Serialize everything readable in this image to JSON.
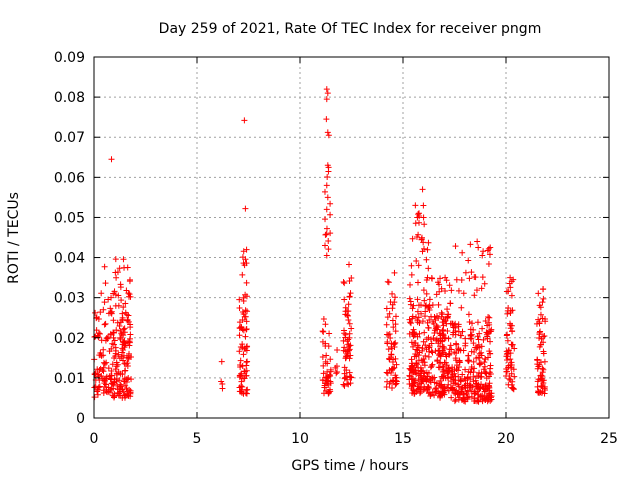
{
  "chart_data": {
    "type": "scatter",
    "title": "Day 259 of 2021, Rate Of TEC Index for receiver pngm",
    "xlabel": "GPS time / hours",
    "ylabel": "ROTI / TECUs",
    "xlim": [
      0,
      25
    ],
    "ylim": [
      0,
      0.09
    ],
    "xticks": [
      "0",
      "5",
      "10",
      "15",
      "20",
      "25"
    ],
    "yticks": [
      "0",
      "0.01",
      "0.02",
      "0.03",
      "0.04",
      "0.05",
      "0.06",
      "0.07",
      "0.08",
      "0.09"
    ],
    "grid": true,
    "marker": "+",
    "color": "#ff0000",
    "clusters": [
      {
        "x_range": [
          0.0,
          0.3
        ],
        "y_range": [
          0.005,
          0.022
        ],
        "count": 28,
        "tall_range": [
          0.022,
          0.03
        ],
        "tall_count": 4
      },
      {
        "x_range": [
          0.3,
          0.9
        ],
        "y_range": [
          0.006,
          0.028
        ],
        "count": 60,
        "tall_range": [
          0.028,
          0.038
        ],
        "tall_count": 6
      },
      {
        "x_range": [
          0.9,
          1.8
        ],
        "y_range": [
          0.005,
          0.025
        ],
        "count": 130,
        "tall_range": [
          0.025,
          0.04
        ],
        "tall_count": 30
      },
      {
        "x_range": [
          6.1,
          6.3
        ],
        "y_range": [
          0.007,
          0.01
        ],
        "count": 3,
        "tall_range": [
          0.014,
          0.0145
        ],
        "tall_count": 1
      },
      {
        "x_range": [
          7.05,
          7.45
        ],
        "y_range": [
          0.006,
          0.028
        ],
        "count": 65,
        "tall_range": [
          0.028,
          0.043
        ],
        "tall_count": 14
      },
      {
        "x_range": [
          11.1,
          11.5
        ],
        "y_range": [
          0.006,
          0.025
        ],
        "count": 45,
        "tall_range": [
          0.04,
          0.063
        ],
        "tall_count": 14
      },
      {
        "x_range": [
          11.6,
          11.8
        ],
        "y_range": [
          0.011,
          0.016
        ],
        "count": 4,
        "tall_range": [
          0.016,
          0.017
        ],
        "tall_count": 1
      },
      {
        "x_range": [
          12.1,
          12.5
        ],
        "y_range": [
          0.008,
          0.03
        ],
        "count": 55,
        "tall_range": [
          0.03,
          0.039
        ],
        "tall_count": 8
      },
      {
        "x_range": [
          14.2,
          14.7
        ],
        "y_range": [
          0.007,
          0.028
        ],
        "count": 55,
        "tall_range": [
          0.028,
          0.038
        ],
        "tall_count": 8
      },
      {
        "x_range": [
          15.3,
          16.3
        ],
        "y_range": [
          0.006,
          0.03
        ],
        "count": 170,
        "tall_range": [
          0.03,
          0.053
        ],
        "tall_count": 30
      },
      {
        "x_range": [
          16.3,
          17.5
        ],
        "y_range": [
          0.005,
          0.026
        ],
        "count": 180,
        "tall_range": [
          0.026,
          0.035
        ],
        "tall_count": 20
      },
      {
        "x_range": [
          17.5,
          19.3
        ],
        "y_range": [
          0.004,
          0.024
        ],
        "count": 240,
        "tall_range": [
          0.024,
          0.044
        ],
        "tall_count": 30
      },
      {
        "x_range": [
          20.0,
          20.4
        ],
        "y_range": [
          0.007,
          0.028
        ],
        "count": 55,
        "tall_range": [
          0.028,
          0.035
        ],
        "tall_count": 6
      },
      {
        "x_range": [
          21.5,
          21.9
        ],
        "y_range": [
          0.006,
          0.028
        ],
        "count": 60,
        "tall_range": [
          0.028,
          0.033
        ],
        "tall_count": 6
      }
    ],
    "points": [
      {
        "x": 0.85,
        "y": 0.0645
      },
      {
        "x": 7.3,
        "y": 0.0742
      },
      {
        "x": 7.35,
        "y": 0.0522
      },
      {
        "x": 11.3,
        "y": 0.082
      },
      {
        "x": 11.35,
        "y": 0.081
      },
      {
        "x": 11.3,
        "y": 0.0795
      },
      {
        "x": 11.28,
        "y": 0.0745
      },
      {
        "x": 11.35,
        "y": 0.0712
      },
      {
        "x": 11.4,
        "y": 0.0705
      },
      {
        "x": 11.35,
        "y": 0.063
      },
      {
        "x": 11.3,
        "y": 0.058
      },
      {
        "x": 11.35,
        "y": 0.055
      },
      {
        "x": 11.3,
        "y": 0.052
      },
      {
        "x": 11.3,
        "y": 0.0405
      },
      {
        "x": 15.95,
        "y": 0.057
      },
      {
        "x": 15.6,
        "y": 0.053
      },
      {
        "x": 15.7,
        "y": 0.05
      },
      {
        "x": 16.0,
        "y": 0.05
      },
      {
        "x": 18.6,
        "y": 0.044
      },
      {
        "x": 18.65,
        "y": 0.0425
      },
      {
        "x": 20.2,
        "y": 0.035
      },
      {
        "x": 20.35,
        "y": 0.0345
      }
    ]
  }
}
